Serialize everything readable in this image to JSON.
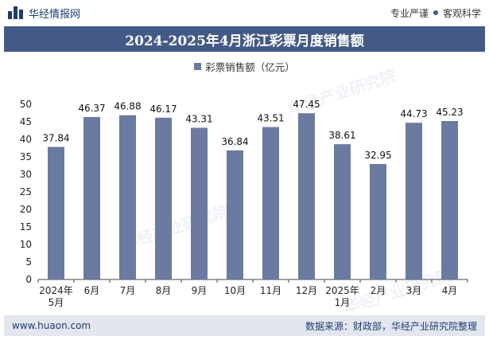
{
  "header": {
    "brand": "华经情报网",
    "tagline_left": "专业严谨",
    "tagline_right": "客观科学"
  },
  "watermark_text": "华经产业研究院",
  "colors": {
    "bar": "#6b7aa1",
    "title_bg": "#445a86",
    "footer_bg": "#e3e6ef"
  },
  "chart_data": {
    "type": "bar",
    "title": "2024-2025年4月浙江彩票月度销售额",
    "legend": [
      {
        "name": "彩票销售额（亿元）"
      }
    ],
    "categories": [
      [
        "2024年",
        "5月"
      ],
      [
        "6月"
      ],
      [
        "7月"
      ],
      [
        "8月"
      ],
      [
        "9月"
      ],
      [
        "10月"
      ],
      [
        "11月"
      ],
      [
        "12月"
      ],
      [
        "2025年",
        "1月"
      ],
      [
        "2月"
      ],
      [
        "3月"
      ],
      [
        "4月"
      ]
    ],
    "series": [
      {
        "name": "彩票销售额（亿元）",
        "values": [
          37.84,
          46.37,
          46.88,
          46.17,
          43.31,
          36.84,
          43.51,
          47.45,
          38.61,
          32.95,
          44.73,
          45.23
        ]
      }
    ],
    "ylim": [
      0,
      50
    ],
    "yticks": [
      0,
      5,
      10,
      15,
      20,
      25,
      30,
      35,
      40,
      45,
      50
    ],
    "grid": false,
    "legend_position": "top-center"
  },
  "footer": {
    "website": "www.huaon.com",
    "source": "数据来源：财政部，华经产业研究院整理"
  }
}
